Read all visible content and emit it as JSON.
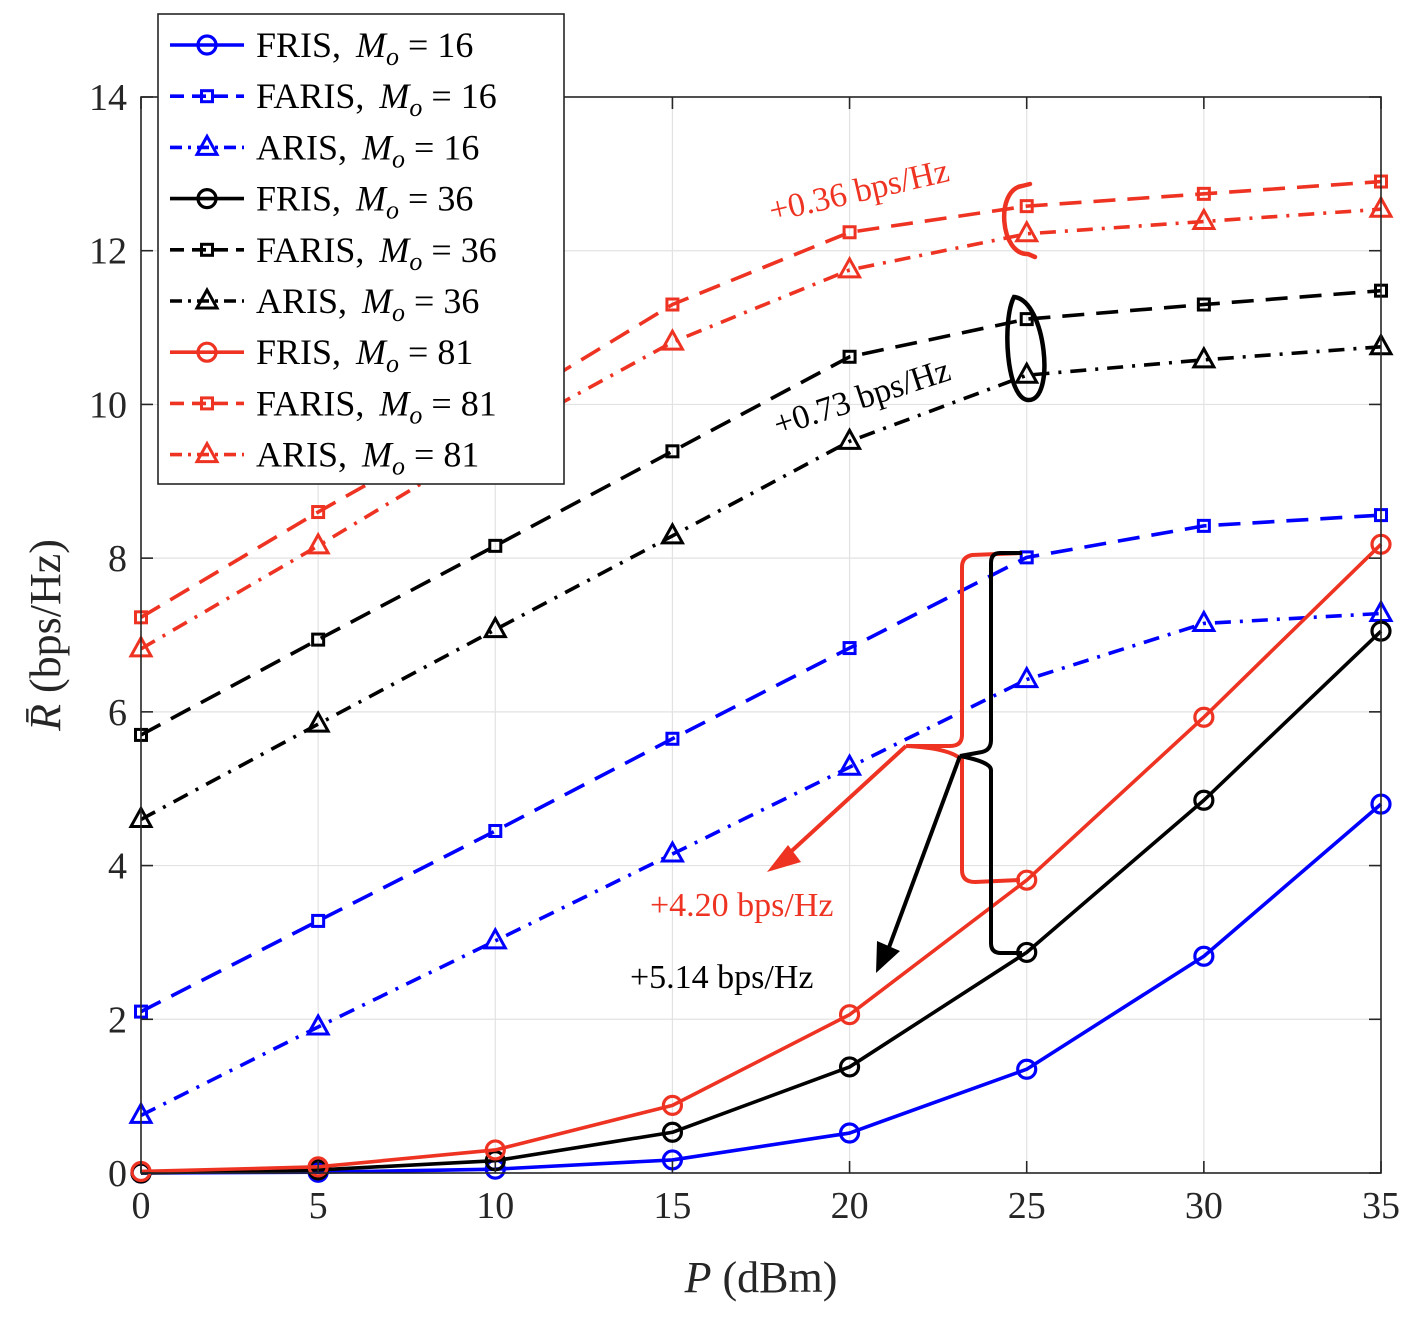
{
  "chart_data": {
    "type": "line",
    "xlabel": "P (dBm)",
    "ylabel": "R̄ (bps/Hz)",
    "xlim": [
      0,
      35
    ],
    "ylim": [
      0,
      14
    ],
    "xticks": [
      0,
      5,
      10,
      15,
      20,
      25,
      30,
      35
    ],
    "yticks": [
      0,
      2,
      4,
      6,
      8,
      10,
      12,
      14
    ],
    "grid": true,
    "legend_position": "top-left",
    "x": [
      0,
      5,
      10,
      15,
      20,
      25,
      30,
      35
    ],
    "series": [
      {
        "id": "fris16",
        "name": "FRIS, M_o = 16",
        "color": "#0000ff",
        "dash": "solid",
        "marker": "circle",
        "values": [
          0.0,
          0.01,
          0.05,
          0.17,
          0.52,
          1.35,
          2.82,
          4.8
        ]
      },
      {
        "id": "faris16",
        "name": "FARIS, M_o = 16",
        "color": "#0000ff",
        "dash": "dashed",
        "marker": "square",
        "values": [
          2.1,
          3.28,
          4.45,
          5.65,
          6.83,
          8.01,
          8.42,
          8.56
        ]
      },
      {
        "id": "aris16",
        "name": "ARIS, M_o = 16",
        "color": "#0000ff",
        "dash": "dashdot",
        "marker": "triangle",
        "values": [
          0.75,
          1.9,
          3.02,
          4.15,
          5.28,
          6.42,
          7.15,
          7.28
        ]
      },
      {
        "id": "fris36",
        "name": "FRIS, M_o = 36",
        "color": "#000000",
        "dash": "solid",
        "marker": "circle",
        "values": [
          0.0,
          0.04,
          0.16,
          0.53,
          1.38,
          2.87,
          4.85,
          7.05
        ]
      },
      {
        "id": "faris36",
        "name": "FARIS, M_o = 36",
        "color": "#000000",
        "dash": "dashed",
        "marker": "square",
        "values": [
          5.7,
          6.94,
          8.16,
          9.39,
          10.62,
          11.11,
          11.3,
          11.48
        ]
      },
      {
        "id": "aris36",
        "name": "ARIS, M_o = 36",
        "color": "#000000",
        "dash": "dashdot",
        "marker": "triangle",
        "values": [
          4.6,
          5.84,
          7.07,
          8.29,
          9.52,
          10.38,
          10.58,
          10.75
        ]
      },
      {
        "id": "fris81",
        "name": "FRIS, M_o = 81",
        "color": "#ee3322",
        "dash": "solid",
        "marker": "circle",
        "values": [
          0.02,
          0.08,
          0.3,
          0.88,
          2.06,
          3.81,
          5.93,
          8.18
        ]
      },
      {
        "id": "faris81",
        "name": "FARIS, M_o = 81",
        "color": "#ee3322",
        "dash": "dashed",
        "marker": "square",
        "values": [
          7.23,
          8.6,
          9.9,
          11.3,
          12.24,
          12.58,
          12.74,
          12.9
        ]
      },
      {
        "id": "aris81",
        "name": "ARIS, M_o = 81",
        "color": "#ee3322",
        "dash": "dashdot",
        "marker": "triangle",
        "values": [
          6.82,
          8.16,
          9.55,
          10.81,
          11.75,
          12.22,
          12.38,
          12.54
        ]
      }
    ],
    "legend_entries": [
      {
        "label": "FRIS,",
        "math": "M_o = 16"
      },
      {
        "label": "FARIS,",
        "math": "M_o = 16"
      },
      {
        "label": "ARIS,",
        "math": "M_o = 16"
      },
      {
        "label": "FRIS,",
        "math": "M_o = 36"
      },
      {
        "label": "FARIS,",
        "math": "M_o = 36"
      },
      {
        "label": "ARIS,",
        "math": "M_o = 36"
      },
      {
        "label": "FRIS,",
        "math": "M_o = 81"
      },
      {
        "label": "FARIS,",
        "math": "M_o = 81"
      },
      {
        "label": "ARIS,",
        "math": "M_o = 81"
      }
    ],
    "annotations": [
      {
        "id": "gain-081",
        "text": "+0.36 bps/Hz",
        "color": "#ee3322"
      },
      {
        "id": "gain-073",
        "text": "+0.73 bps/Hz",
        "color": "#000000"
      },
      {
        "id": "gain-420",
        "text": "+4.20 bps/Hz",
        "color": "#ee3322"
      },
      {
        "id": "gain-514",
        "text": "+5.14 bps/Hz",
        "color": "#000000"
      }
    ]
  }
}
